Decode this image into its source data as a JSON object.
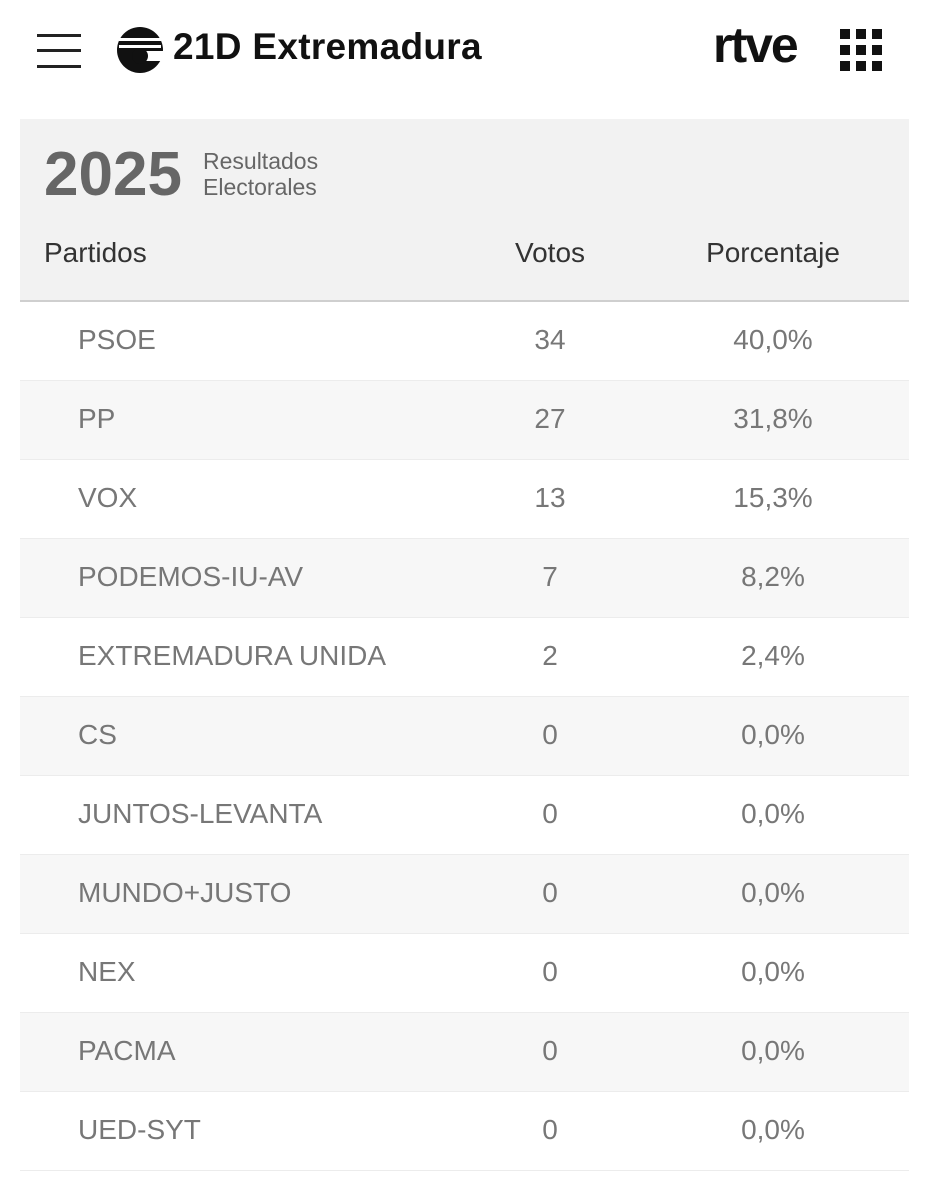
{
  "header": {
    "title": "21D Extremadura",
    "brand": "rtve"
  },
  "table": {
    "year": "2025",
    "subtitle": [
      "Resultados",
      "Electorales"
    ],
    "columns": [
      "Partidos",
      "Votos",
      "Porcentaje"
    ],
    "rows": [
      [
        "PSOE",
        34,
        "40,0%"
      ],
      [
        "PP",
        27,
        "31,8%"
      ],
      [
        "VOX",
        13,
        "15,3%"
      ],
      [
        "PODEMOS-IU-AV",
        7,
        "8,2%"
      ],
      [
        "EXTREMADURA UNIDA",
        2,
        "2,4%"
      ],
      [
        "CS",
        0,
        "0,0%"
      ],
      [
        "JUNTOS-LEVANTA",
        0,
        "0,0%"
      ],
      [
        "MUNDO+JUSTO",
        0,
        "0,0%"
      ],
      [
        "NEX",
        0,
        "0,0%"
      ],
      [
        "PACMA",
        0,
        "0,0%"
      ],
      [
        "UED-SYT",
        0,
        "0,0%"
      ]
    ]
  }
}
